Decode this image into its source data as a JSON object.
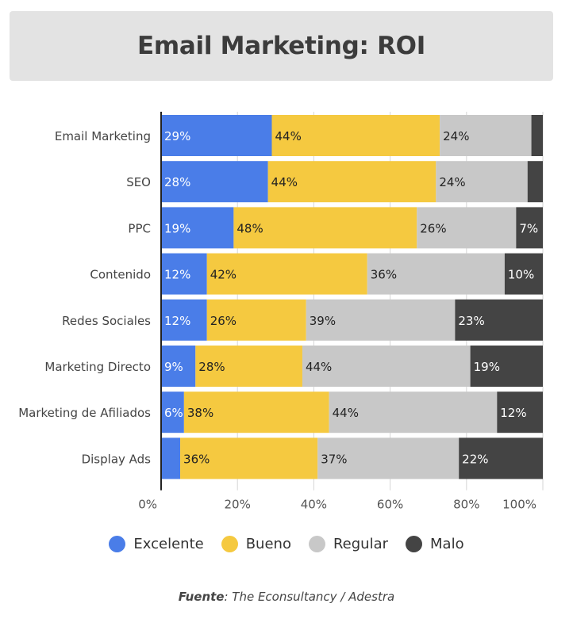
{
  "header": {
    "title": "Email Marketing: ROI"
  },
  "colors": {
    "excelente": "#4a7de8",
    "bueno": "#f5c940",
    "regular": "#c8c8c8",
    "malo": "#444444"
  },
  "chart_data": {
    "type": "bar",
    "orientation": "horizontal",
    "stacked": true,
    "title": "Email Marketing: ROI",
    "categories": [
      "Email Marketing",
      "SEO",
      "PPC",
      "Contenido",
      "Redes Sociales",
      "Marketing Directo",
      "Marketing de Afiliados",
      "Display Ads"
    ],
    "series": [
      {
        "name": "Excelente",
        "key": "excelente",
        "values": [
          29,
          28,
          19,
          12,
          12,
          9,
          6,
          5
        ],
        "labels": [
          "29%",
          "28%",
          "19%",
          "12%",
          "12%",
          "9%",
          "6%",
          ""
        ]
      },
      {
        "name": "Bueno",
        "key": "bueno",
        "values": [
          44,
          44,
          48,
          42,
          26,
          28,
          38,
          36
        ],
        "labels": [
          "44%",
          "44%",
          "48%",
          "42%",
          "26%",
          "28%",
          "38%",
          "36%"
        ]
      },
      {
        "name": "Regular",
        "key": "regular",
        "values": [
          24,
          24,
          26,
          36,
          39,
          44,
          44,
          37
        ],
        "labels": [
          "24%",
          "24%",
          "26%",
          "36%",
          "39%",
          "44%",
          "44%",
          "37%"
        ]
      },
      {
        "name": "Malo",
        "key": "malo",
        "values": [
          3,
          4,
          7,
          10,
          23,
          19,
          12,
          22
        ],
        "labels": [
          "",
          "",
          "7%",
          "10%",
          "23%",
          "19%",
          "12%",
          "22%"
        ]
      }
    ],
    "xlim": [
      0,
      100
    ],
    "xticks": [
      0,
      20,
      40,
      60,
      80,
      100
    ],
    "xtick_labels": [
      "0%",
      "20%",
      "40%",
      "60%",
      "80%",
      "100%"
    ],
    "legend_position": "bottom",
    "grid": true
  },
  "legend": [
    {
      "label": "Excelente",
      "key": "excelente"
    },
    {
      "label": "Bueno",
      "key": "bueno"
    },
    {
      "label": "Regular",
      "key": "regular"
    },
    {
      "label": "Malo",
      "key": "malo"
    }
  ],
  "source": {
    "prefix": "Fuente",
    "text": ": The Econsultancy / Adestra"
  }
}
